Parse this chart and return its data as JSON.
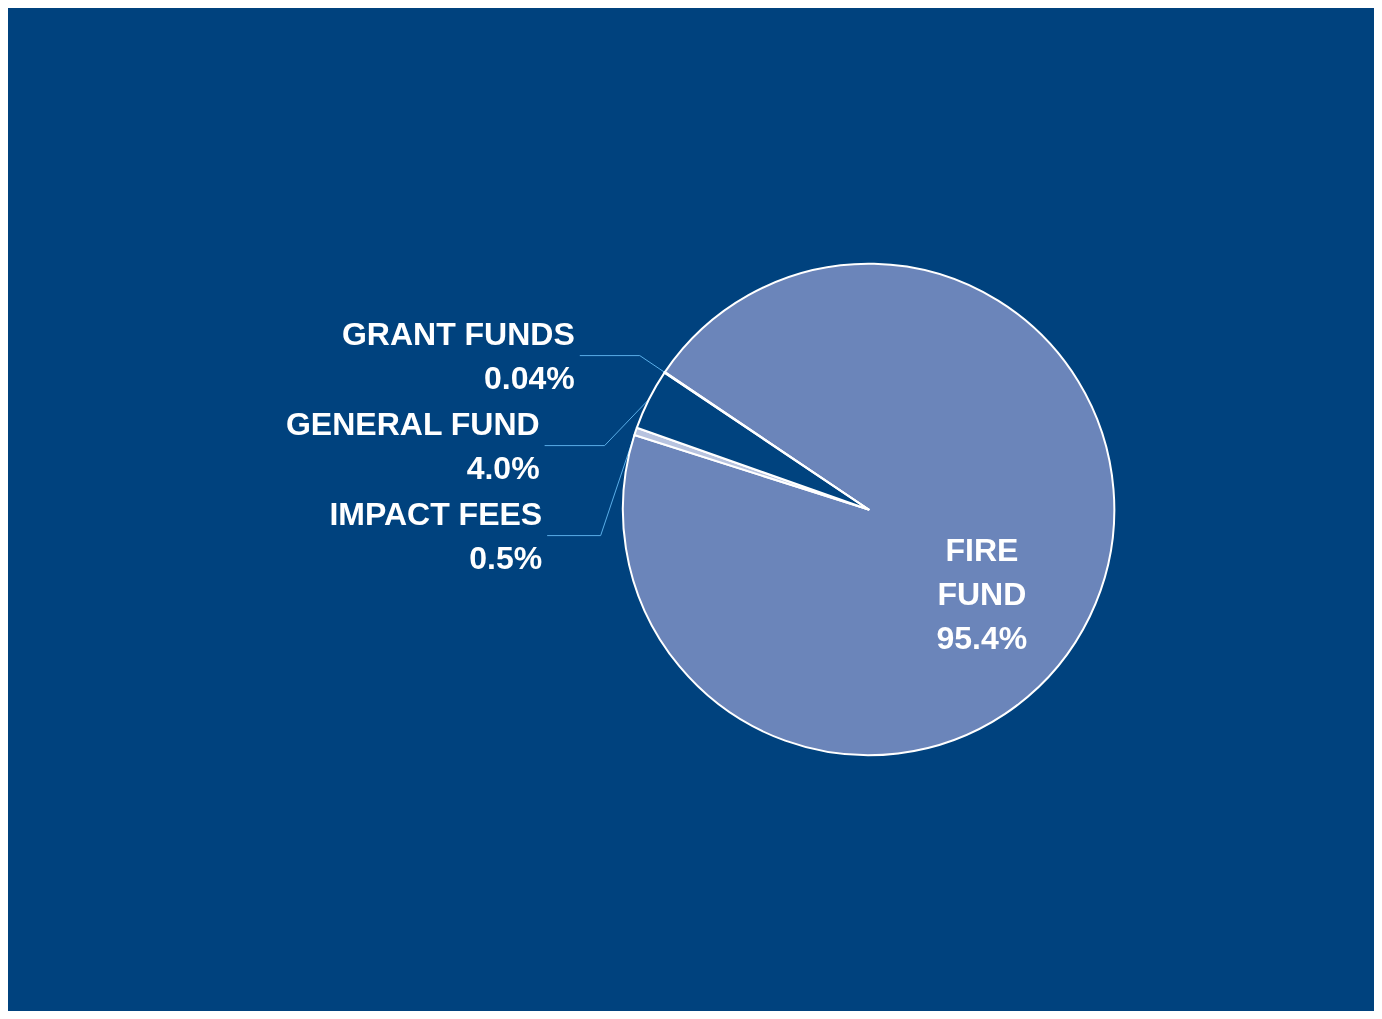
{
  "chart_data": {
    "type": "pie",
    "categories": [
      "FIRE\nFUND",
      "IMPACT FEES",
      "GENERAL FUND",
      "GRANT FUNDS"
    ],
    "values": [
      95.4,
      0.5,
      4.0,
      0.04
    ],
    "value_labels": [
      "95.4%",
      "0.5%",
      "4.0%",
      "0.04%"
    ],
    "colors": [
      "#6b85ba",
      "#b7c3df",
      "#00437f",
      "#6b85ba"
    ],
    "legend": false
  }
}
